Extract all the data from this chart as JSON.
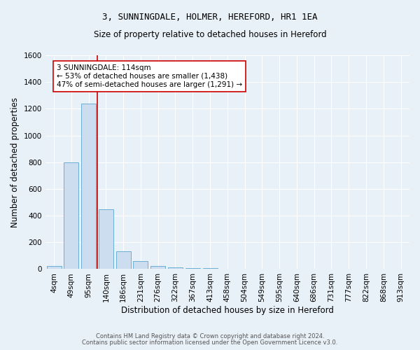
{
  "title": "3, SUNNINGDALE, HOLMER, HEREFORD, HR1 1EA",
  "subtitle": "Size of property relative to detached houses in Hereford",
  "xlabel": "Distribution of detached houses by size in Hereford",
  "ylabel": "Number of detached properties",
  "footnote1": "Contains HM Land Registry data © Crown copyright and database right 2024.",
  "footnote2": "Contains public sector information licensed under the Open Government Licence v3.0.",
  "bin_labels": [
    "4sqm",
    "49sqm",
    "95sqm",
    "140sqm",
    "186sqm",
    "231sqm",
    "276sqm",
    "322sqm",
    "367sqm",
    "413sqm",
    "458sqm",
    "504sqm",
    "549sqm",
    "595sqm",
    "640sqm",
    "686sqm",
    "731sqm",
    "777sqm",
    "822sqm",
    "868sqm",
    "913sqm"
  ],
  "bin_values": [
    25,
    800,
    1240,
    450,
    135,
    60,
    25,
    15,
    10,
    10,
    0,
    0,
    0,
    0,
    0,
    0,
    0,
    0,
    0,
    0,
    0
  ],
  "bar_color": "#ccddf0",
  "bar_edge_color": "#6baed6",
  "ylim": [
    0,
    1600
  ],
  "yticks": [
    0,
    200,
    400,
    600,
    800,
    1000,
    1200,
    1400,
    1600
  ],
  "vline_x": 2.5,
  "vline_color": "#cc0000",
  "annotation_text": "3 SUNNINGDALE: 114sqm\n← 53% of detached houses are smaller (1,438)\n47% of semi-detached houses are larger (1,291) →",
  "annotation_box_color": "#ffffff",
  "annotation_box_edge": "#cc0000",
  "bg_color": "#e8f0f8",
  "plot_bg_color": "#e8f0f8",
  "grid_color": "#ffffff",
  "title_fontsize": 9,
  "subtitle_fontsize": 8.5,
  "xlabel_fontsize": 8.5,
  "ylabel_fontsize": 8.5,
  "tick_fontsize": 7.5,
  "annotation_fontsize": 7.5,
  "footnote_fontsize": 6.0
}
